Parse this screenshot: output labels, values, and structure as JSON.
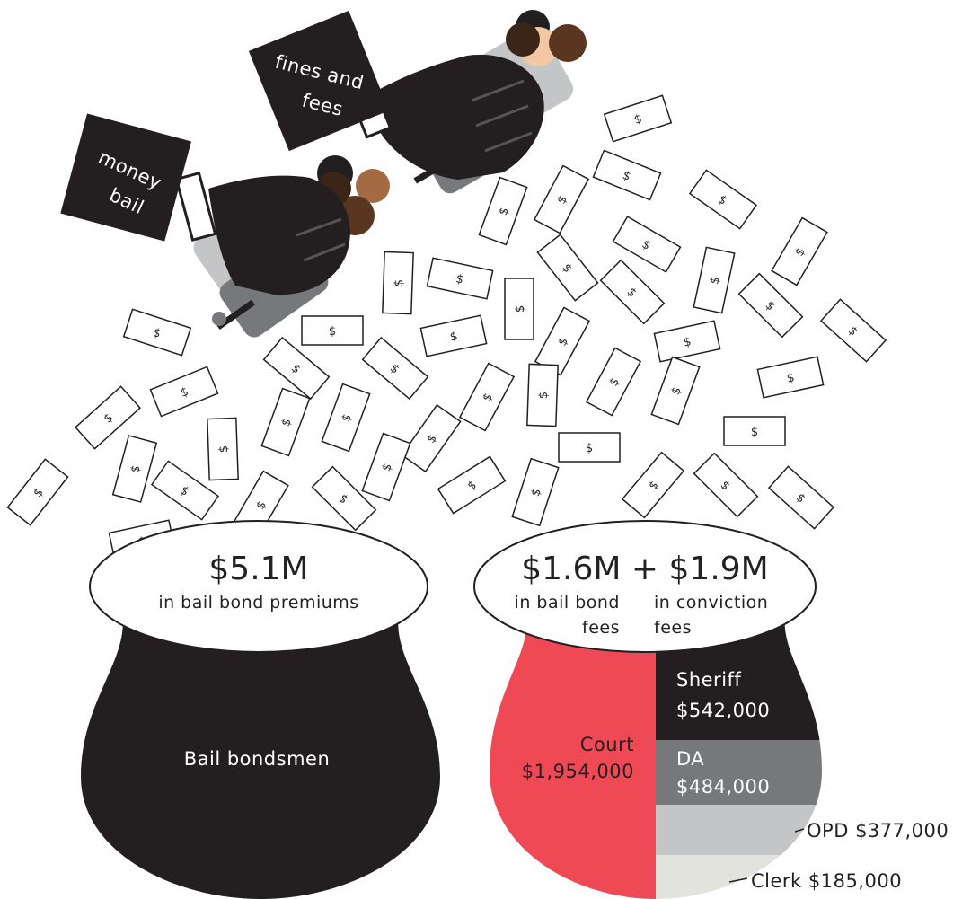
{
  "hands": [
    {
      "label_line1": "money",
      "label_line2": "bail"
    },
    {
      "label_line1": "fines and",
      "label_line2": "fees"
    }
  ],
  "bill_symbol": "$",
  "left_pot": {
    "amount": "$5.1M",
    "caption": "in bail bond premiums",
    "label": "Bail bondsmen",
    "color": "#231f20"
  },
  "right_pot": {
    "amount": "$1.6M + $1.9M",
    "caption_left_line1": "in bail bond",
    "caption_left_line2": "fees",
    "caption_right_line1": "in conviction",
    "caption_right_line2": "fees",
    "segments": [
      {
        "name": "Court",
        "value": "$1,954,000",
        "amount": 1954000,
        "color": "#ef4956"
      },
      {
        "name": "Sheriff",
        "value": "$542,000",
        "amount": 542000,
        "color": "#231f20"
      },
      {
        "name": "DA",
        "value": "$484,000",
        "amount": 484000,
        "color": "#76787b"
      },
      {
        "name": "OPD",
        "value": "$377,000",
        "amount": 377000,
        "color": "#c3c5c7"
      },
      {
        "name": "Clerk",
        "value": "$185,000",
        "amount": 185000,
        "color": "#e3e3de"
      }
    ]
  }
}
